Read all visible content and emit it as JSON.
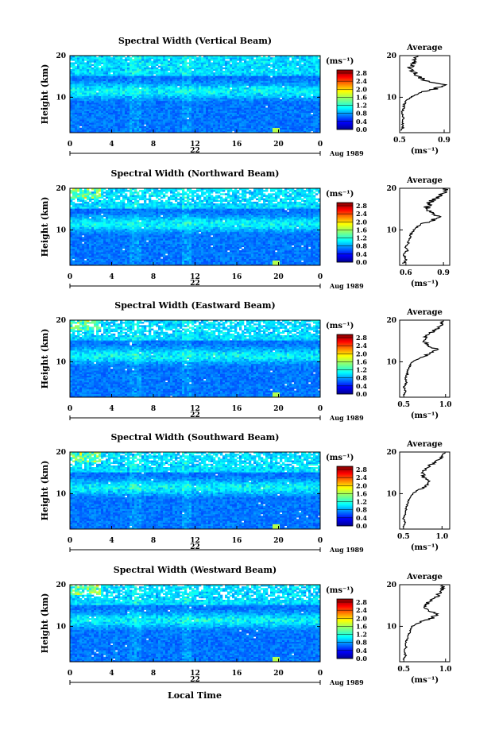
{
  "figure": {
    "x_axis_title": "Local Time",
    "date_label": "Aug 1989",
    "day_label": "22",
    "avg_title": "Average",
    "height_axis_title": "Height (km)",
    "unit_label": "(ms⁻¹)"
  },
  "chart_data": [
    {
      "type": "heatmap",
      "title": "Spectral Width (Vertical Beam)",
      "xlabel": "",
      "ylabel": "Height (km)",
      "x_ticks": [
        "0",
        "4",
        "8",
        "12",
        "16",
        "20",
        "0"
      ],
      "y_ticks": [
        "20",
        "10"
      ],
      "xlim": [
        0,
        24
      ],
      "ylim": [
        1.5,
        20
      ],
      "colorbar": {
        "label": "(ms⁻¹)",
        "ticks": [
          "2.8",
          "2.4",
          "2.0",
          "1.6",
          "1.2",
          "0.8",
          "0.4",
          "0.0"
        ]
      },
      "profile": {
        "title": "Average",
        "xlabel": "(ms⁻¹)",
        "x_ticks": [
          "0.5",
          "0.9"
        ],
        "xlim": [
          0.5,
          0.95
        ],
        "y_ticks": [
          "20",
          "10"
        ],
        "heights": [
          2,
          3,
          4,
          5,
          6,
          7,
          8,
          9,
          10,
          11,
          12,
          13,
          14,
          15,
          16,
          17,
          18,
          19,
          20
        ],
        "values": [
          0.52,
          0.53,
          0.52,
          0.53,
          0.52,
          0.53,
          0.54,
          0.55,
          0.6,
          0.68,
          0.82,
          0.9,
          0.74,
          0.66,
          0.63,
          0.6,
          0.62,
          0.64,
          0.66
        ]
      }
    },
    {
      "type": "heatmap",
      "title": "Spectral Width (Northward Beam)",
      "xlabel": "",
      "ylabel": "Height (km)",
      "x_ticks": [
        "0",
        "4",
        "8",
        "12",
        "16",
        "20",
        "0"
      ],
      "y_ticks": [
        "20",
        "10"
      ],
      "xlim": [
        0,
        24
      ],
      "ylim": [
        1.5,
        20
      ],
      "colorbar": {
        "label": "(ms⁻¹)",
        "ticks": [
          "2.8",
          "2.4",
          "2.0",
          "1.6",
          "1.2",
          "0.8",
          "0.4",
          "0.0"
        ]
      },
      "profile": {
        "title": "Average",
        "xlabel": "(ms⁻¹)",
        "x_ticks": [
          "0.6",
          "0.9"
        ],
        "xlim": [
          0.55,
          0.95
        ],
        "y_ticks": [
          "20",
          "10"
        ],
        "heights": [
          2,
          3,
          4,
          5,
          6,
          7,
          8,
          9,
          10,
          11,
          12,
          13,
          14,
          15,
          16,
          17,
          18,
          19,
          20
        ],
        "values": [
          0.58,
          0.6,
          0.58,
          0.61,
          0.6,
          0.62,
          0.63,
          0.64,
          0.66,
          0.7,
          0.78,
          0.88,
          0.8,
          0.76,
          0.78,
          0.8,
          0.86,
          0.9,
          0.92
        ]
      }
    },
    {
      "type": "heatmap",
      "title": "Spectral Width (Eastward Beam)",
      "xlabel": "",
      "ylabel": "Height (km)",
      "x_ticks": [
        "0",
        "4",
        "8",
        "12",
        "16",
        "20",
        "0"
      ],
      "y_ticks": [
        "20",
        "10"
      ],
      "xlim": [
        0,
        24
      ],
      "ylim": [
        1.5,
        20
      ],
      "colorbar": {
        "label": "(ms⁻¹)",
        "ticks": [
          "2.8",
          "2.4",
          "2.0",
          "1.6",
          "1.2",
          "0.8",
          "0.4",
          "0.0"
        ]
      },
      "profile": {
        "title": "Average",
        "xlabel": "(ms⁻¹)",
        "x_ticks": [
          "0.5",
          "1.0"
        ],
        "xlim": [
          0.45,
          1.05
        ],
        "y_ticks": [
          "20",
          "10"
        ],
        "heights": [
          2,
          3,
          4,
          5,
          6,
          7,
          8,
          9,
          10,
          11,
          12,
          13,
          14,
          15,
          16,
          17,
          18,
          19,
          20
        ],
        "values": [
          0.5,
          0.52,
          0.5,
          0.53,
          0.52,
          0.54,
          0.55,
          0.57,
          0.6,
          0.7,
          0.82,
          0.9,
          0.78,
          0.74,
          0.76,
          0.82,
          0.9,
          0.96,
          0.98
        ]
      }
    },
    {
      "type": "heatmap",
      "title": "Spectral Width (Southward Beam)",
      "xlabel": "",
      "ylabel": "Height (km)",
      "x_ticks": [
        "0",
        "4",
        "8",
        "12",
        "16",
        "20",
        "0"
      ],
      "y_ticks": [
        "20",
        "10"
      ],
      "xlim": [
        0,
        24
      ],
      "ylim": [
        1.5,
        20
      ],
      "colorbar": {
        "label": "(ms⁻¹)",
        "ticks": [
          "2.8",
          "2.4",
          "2.0",
          "1.6",
          "1.2",
          "0.8",
          "0.4",
          "0.0"
        ]
      },
      "profile": {
        "title": "Average",
        "xlabel": "(ms⁻¹)",
        "x_ticks": [
          "0.5",
          "1.0"
        ],
        "xlim": [
          0.45,
          1.1
        ],
        "y_ticks": [
          "20",
          "10"
        ],
        "heights": [
          2,
          3,
          4,
          5,
          6,
          7,
          8,
          9,
          10,
          11,
          12,
          13,
          14,
          15,
          16,
          17,
          18,
          19,
          20
        ],
        "values": [
          0.5,
          0.52,
          0.5,
          0.52,
          0.53,
          0.54,
          0.56,
          0.58,
          0.62,
          0.7,
          0.8,
          0.86,
          0.76,
          0.74,
          0.78,
          0.86,
          0.94,
          1.0,
          1.02
        ]
      }
    },
    {
      "type": "heatmap",
      "title": "Spectral Width (Westward Beam)",
      "xlabel": "Local Time",
      "ylabel": "Height (km)",
      "x_ticks": [
        "0",
        "4",
        "8",
        "12",
        "16",
        "20",
        "0"
      ],
      "y_ticks": [
        "20",
        "10"
      ],
      "xlim": [
        0,
        24
      ],
      "ylim": [
        1.5,
        20
      ],
      "colorbar": {
        "label": "(ms⁻¹)",
        "ticks": [
          "2.8",
          "2.4",
          "2.0",
          "1.6",
          "1.2",
          "0.8",
          "0.4",
          "0.0"
        ]
      },
      "profile": {
        "title": "Average",
        "xlabel": "(ms⁻¹)",
        "x_ticks": [
          "0.5",
          "1.0"
        ],
        "xlim": [
          0.45,
          1.05
        ],
        "y_ticks": [
          "20",
          "10"
        ],
        "heights": [
          2,
          3,
          4,
          5,
          6,
          7,
          8,
          9,
          10,
          11,
          12,
          13,
          14,
          15,
          16,
          17,
          18,
          19,
          20
        ],
        "values": [
          0.5,
          0.52,
          0.5,
          0.53,
          0.52,
          0.54,
          0.56,
          0.58,
          0.6,
          0.7,
          0.84,
          0.9,
          0.78,
          0.76,
          0.8,
          0.88,
          0.94,
          0.96,
          0.97
        ]
      }
    }
  ]
}
